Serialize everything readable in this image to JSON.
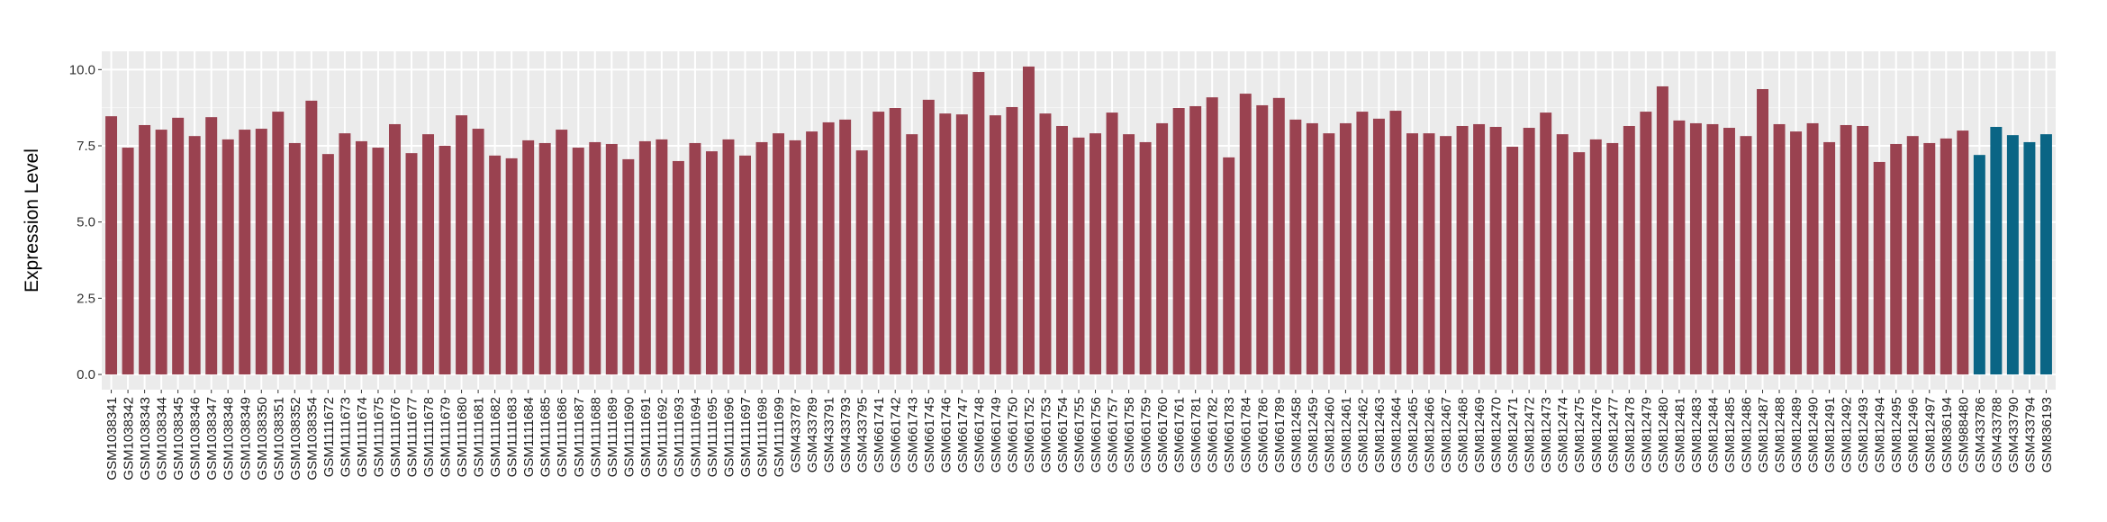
{
  "chart_data": {
    "type": "bar",
    "title": "",
    "xlabel": "",
    "ylabel": "Expression Level",
    "ylim": [
      -0.5,
      10.6
    ],
    "yticks": [
      "0.0",
      "2.5",
      "5.0",
      "7.5",
      "10.0"
    ],
    "grid": true,
    "panel_background": "#EBEBEB",
    "legend": "none",
    "series": [
      {
        "color": "#9A4250",
        "categories": [
          "GSM1038341",
          "GSM1038342",
          "GSM1038343",
          "GSM1038344",
          "GSM1038345",
          "GSM1038346",
          "GSM1038347",
          "GSM1038348",
          "GSM1038349",
          "GSM1038350",
          "GSM1038351",
          "GSM1038352",
          "GSM1038354",
          "GSM1111672",
          "GSM1111673",
          "GSM1111674",
          "GSM1111675",
          "GSM1111676",
          "GSM1111677",
          "GSM1111678",
          "GSM1111679",
          "GSM1111680",
          "GSM1111681",
          "GSM1111682",
          "GSM1111683",
          "GSM1111684",
          "GSM1111685",
          "GSM1111686",
          "GSM1111687",
          "GSM1111688",
          "GSM1111689",
          "GSM1111690",
          "GSM1111691",
          "GSM1111692",
          "GSM1111693",
          "GSM1111694",
          "GSM1111695",
          "GSM1111696",
          "GSM1111697",
          "GSM1111698",
          "GSM1111699",
          "GSM433787",
          "GSM433789",
          "GSM433791",
          "GSM433793",
          "GSM433795",
          "GSM661741",
          "GSM661742",
          "GSM661743",
          "GSM661745",
          "GSM661746",
          "GSM661747",
          "GSM661748",
          "GSM661749",
          "GSM661750",
          "GSM661752",
          "GSM661753",
          "GSM661754",
          "GSM661755",
          "GSM661756",
          "GSM661757",
          "GSM661758",
          "GSM661759",
          "GSM661760",
          "GSM661761",
          "GSM661781",
          "GSM661782",
          "GSM661783",
          "GSM661784",
          "GSM661786",
          "GSM661789",
          "GSM812458",
          "GSM812459",
          "GSM812460",
          "GSM812461",
          "GSM812462",
          "GSM812463",
          "GSM812464",
          "GSM812465",
          "GSM812466",
          "GSM812467",
          "GSM812468",
          "GSM812469",
          "GSM812470",
          "GSM812471",
          "GSM812472",
          "GSM812473",
          "GSM812474",
          "GSM812475",
          "GSM812476",
          "GSM812477",
          "GSM812478",
          "GSM812479",
          "GSM812480",
          "GSM812481",
          "GSM812483",
          "GSM812484",
          "GSM812485",
          "GSM812486",
          "GSM812487",
          "GSM812488",
          "GSM812489",
          "GSM812490",
          "GSM812491",
          "GSM812492",
          "GSM812493",
          "GSM812494",
          "GSM812495",
          "GSM812496",
          "GSM812497",
          "GSM836194",
          "GSM988480"
        ],
        "values": [
          8.47,
          7.44,
          8.18,
          8.03,
          8.42,
          7.82,
          8.44,
          7.71,
          8.03,
          8.06,
          8.62,
          7.59,
          8.98,
          7.23,
          7.91,
          7.65,
          7.44,
          8.21,
          7.26,
          7.88,
          7.5,
          8.5,
          8.06,
          7.18,
          7.09,
          7.68,
          7.59,
          8.03,
          7.44,
          7.62,
          7.56,
          7.06,
          7.65,
          7.71,
          7.0,
          7.59,
          7.32,
          7.71,
          7.18,
          7.62,
          7.91,
          7.68,
          7.97,
          8.27,
          8.36,
          7.35,
          8.62,
          8.74,
          7.88,
          9.01,
          8.56,
          8.53,
          9.92,
          8.5,
          8.77,
          10.1,
          8.56,
          8.15,
          7.77,
          7.91,
          8.59,
          7.88,
          7.62,
          8.24,
          8.74,
          8.8,
          9.09,
          7.12,
          9.21,
          8.83,
          9.07,
          8.36,
          8.24,
          7.91,
          8.24,
          8.62,
          8.39,
          8.65,
          7.91,
          7.91,
          7.82,
          8.15,
          8.21,
          8.12,
          7.47,
          8.09,
          8.59,
          7.88,
          7.29,
          7.71,
          7.59,
          8.15,
          8.62,
          9.45,
          8.33,
          8.24,
          8.21,
          8.09,
          7.82,
          9.36,
          8.21,
          7.97,
          8.24,
          7.62,
          8.18,
          8.15,
          6.97,
          7.56,
          7.82,
          7.59,
          7.74,
          8.0
        ]
      },
      {
        "color": "#0A6585",
        "categories": [
          "GSM433786",
          "GSM433788",
          "GSM433790",
          "GSM433794",
          "GSM836193"
        ],
        "values": [
          7.2,
          8.12,
          7.85,
          7.62,
          7.88
        ]
      }
    ]
  }
}
